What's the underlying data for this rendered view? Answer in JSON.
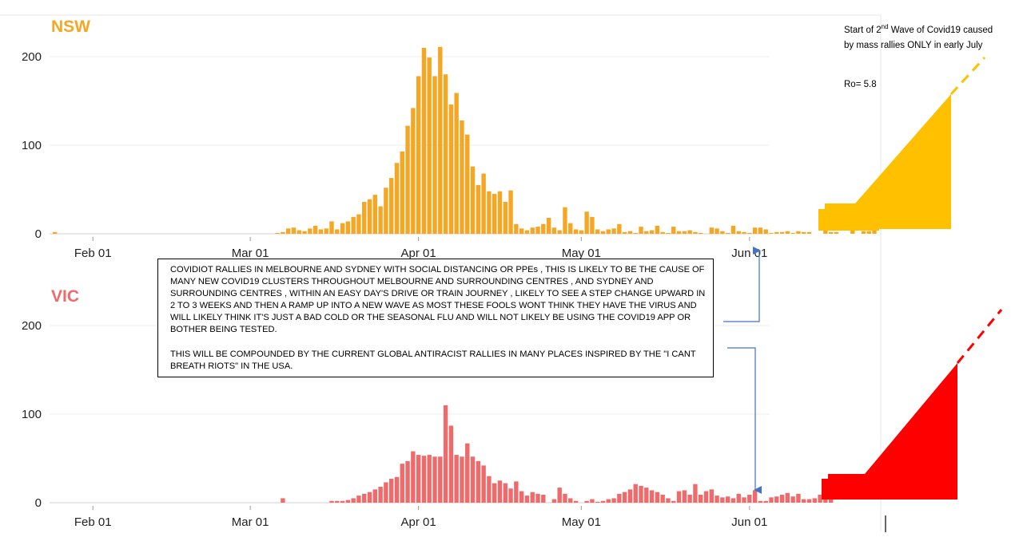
{
  "chart_data": [
    {
      "type": "bar",
      "title": "NSW",
      "color": "#f5a623",
      "x_ticks": [
        "Feb 01",
        "Mar 01",
        "Apr 01",
        "May 01",
        "Jun 01"
      ],
      "y_ticks": [
        0,
        100,
        200
      ],
      "ylim": [
        0,
        225
      ],
      "x_start": "Jan 25",
      "grid": true,
      "values": [
        2,
        0,
        0,
        0,
        0,
        0,
        0,
        0,
        0,
        0,
        0,
        0,
        0,
        0,
        0,
        0,
        0,
        0,
        0,
        0,
        0,
        0,
        0,
        0,
        0,
        0,
        0,
        0,
        0,
        0,
        0,
        0,
        0,
        0,
        0,
        0,
        0,
        0,
        0,
        0,
        0,
        1,
        2,
        6,
        7,
        4,
        3,
        6,
        9,
        5,
        6,
        14,
        5,
        12,
        14,
        19,
        22,
        36,
        39,
        44,
        31,
        52,
        63,
        80,
        93,
        122,
        142,
        178,
        210,
        199,
        178,
        211,
        180,
        146,
        159,
        128,
        112,
        76,
        55,
        68,
        48,
        45,
        48,
        36,
        49,
        11,
        6,
        4,
        7,
        8,
        11,
        18,
        7,
        4,
        30,
        12,
        5,
        4,
        25,
        19,
        5,
        3,
        5,
        6,
        11,
        2,
        3,
        1,
        8,
        3,
        4,
        9,
        2,
        1,
        8,
        3,
        3,
        4,
        2,
        1,
        0,
        7,
        6,
        3,
        1,
        9,
        3,
        2,
        1,
        7,
        7,
        5,
        1,
        2,
        2,
        3,
        1,
        3,
        2,
        2,
        0,
        0,
        4,
        2,
        2,
        0,
        0,
        6,
        0,
        3,
        3,
        6
      ]
    },
    {
      "type": "bar",
      "title": "VIC",
      "color": "#ef6b6b",
      "x_ticks": [
        "Feb 01",
        "Mar 01",
        "Apr 01",
        "May 01",
        "Jun 01"
      ],
      "y_ticks": [
        0,
        100,
        200
      ],
      "ylim": [
        0,
        225
      ],
      "x_start": "Jan 25",
      "grid": true,
      "values": [
        0,
        0,
        0,
        0,
        0,
        0,
        0,
        0,
        0,
        0,
        0,
        0,
        0,
        0,
        0,
        0,
        0,
        0,
        0,
        0,
        0,
        0,
        0,
        0,
        0,
        0,
        0,
        0,
        0,
        0,
        0,
        0,
        0,
        0,
        0,
        0,
        0,
        0,
        0,
        0,
        0,
        0,
        5,
        0,
        0,
        0,
        0,
        0,
        0,
        0,
        0,
        2,
        2,
        2,
        3,
        5,
        8,
        10,
        12,
        15,
        18,
        23,
        27,
        29,
        44,
        47,
        58,
        54,
        53,
        54,
        52,
        52,
        110,
        87,
        54,
        52,
        67,
        52,
        47,
        42,
        30,
        22,
        25,
        22,
        16,
        24,
        13,
        8,
        12,
        10,
        9,
        0,
        4,
        17,
        10,
        5,
        2,
        0,
        2,
        4,
        1,
        2,
        4,
        5,
        10,
        12,
        15,
        21,
        19,
        17,
        14,
        12,
        9,
        5,
        2,
        13,
        14,
        9,
        21,
        9,
        13,
        15,
        8,
        6,
        7,
        5,
        10,
        6,
        9,
        14,
        2,
        2,
        6,
        7,
        9,
        11,
        7,
        10,
        4,
        4,
        5,
        9,
        6,
        10
      ]
    }
  ],
  "callout": {
    "paragraph1": "COVIDIOT RALLIES IN MELBOURNE AND SYDNEY WITH SOCIAL DISTANCING OR PPEs , THIS IS LIKELY TO BE THE CAUSE OF MANY NEW COVID19 CLUSTERS THROUGHOUT MELBOURNE AND SURROUNDING CENTRES  , AND SYDNEY AND SURROUNDING CENTRES , WITHIN AN EASY DAY'S DRIVE OR TRAIN JOURNEY , LIKELY TO SEE A STEP CHANGE UPWARD IN 2 TO 3 WEEKS AND THEN A RAMP UP INTO A NEW WAVE AS MOST THESE FOOLS WONT THINK THEY HAVE THE VIRUS AND WILL LIKELY THINK IT'S JUST A BAD COLD OR THE SEASONAL FLU AND WILL NOT LIKELY BE USING THE COVID19 APP OR BOTHER BEING TESTED.",
    "paragraph2": "THIS WILL BE COMPOUNDED BY THE CURRENT GLOBAL ANTIRACIST RALLIES IN MANY PLACES INSPIRED BY THE \"I CANT BREATH RIOTS\" IN THE USA."
  },
  "annotation": {
    "text_before": "Start of 2",
    "superscript": "nd",
    "text_after": " Wave of Covid19 caused by mass rallies ONLY in early July",
    "ro": "Ro= 5.8"
  },
  "projection_colors": {
    "nsw": "#ffc000",
    "vic": "#ff0000"
  },
  "arrow_color": "#4472c4"
}
